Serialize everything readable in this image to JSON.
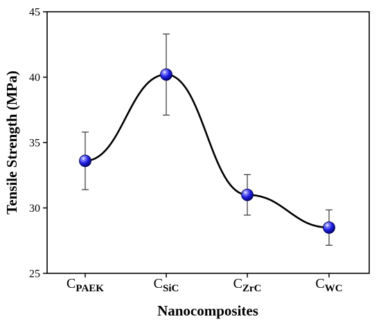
{
  "chart_data": {
    "type": "line",
    "xlabel": "Nanocomposites",
    "ylabel": "Tensile Strength (MPa)",
    "ylim": [
      25,
      45
    ],
    "yticks": [
      "25",
      "30",
      "35",
      "40",
      "45"
    ],
    "categories": [
      {
        "main": "C",
        "sub": "PAEK"
      },
      {
        "main": "C",
        "sub": "SiC"
      },
      {
        "main": "C",
        "sub": "ZrC"
      },
      {
        "main": "C",
        "sub": "WC"
      }
    ],
    "values": [
      33.6,
      40.2,
      31.0,
      28.5
    ],
    "errors": [
      2.2,
      3.1,
      1.55,
      1.35
    ],
    "curve": "smooth spline through points",
    "marker_color": "#1f1fe0",
    "grid": false,
    "legend": "none"
  }
}
